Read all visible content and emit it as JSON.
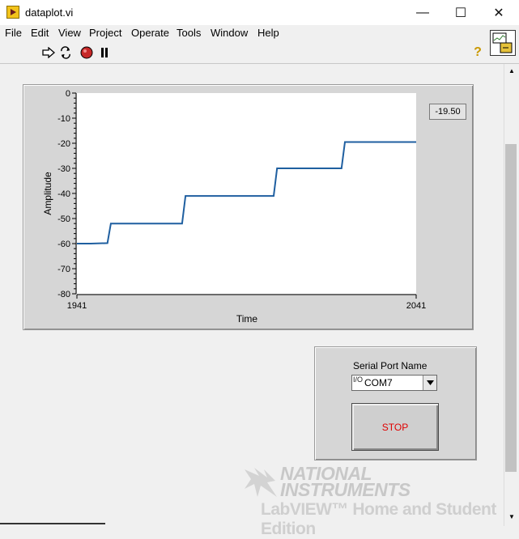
{
  "window": {
    "title": "dataplot.vi",
    "minimize": "—",
    "maximize": "☐",
    "close": "✕"
  },
  "menu": [
    "File",
    "Edit",
    "View",
    "Project",
    "Operate",
    "Tools",
    "Window",
    "Help"
  ],
  "toolbar": {
    "icons": [
      "run-arrow-icon",
      "run-continuously-icon",
      "abort-icon",
      "pause-icon",
      "help-icon"
    ],
    "help_glyph": "?"
  },
  "graph": {
    "readout": "-19.50"
  },
  "chart_data": {
    "type": "line",
    "xlabel": "Time",
    "ylabel": "Amplitude",
    "xlim": [
      1941,
      2041
    ],
    "ylim": [
      -80,
      0
    ],
    "x_ticks": [
      "1941",
      "2041"
    ],
    "y_ticks": [
      "0",
      "-10",
      "-20",
      "-30",
      "-40",
      "-50",
      "-60",
      "-70",
      "-80"
    ],
    "grid": false,
    "series_color": "#1f5fa0",
    "series": [
      {
        "x": [
          1941,
          1945,
          1950,
          1951,
          1952,
          1962,
          1972,
          1973,
          1974,
          1980,
          1990,
          1999,
          2000,
          2001,
          2010,
          2019,
          2020,
          2030,
          2041
        ],
        "values": [
          -60,
          -60,
          -59.8,
          -52,
          -52,
          -52,
          -52,
          -41,
          -41,
          -41,
          -41,
          -41,
          -30,
          -30,
          -30,
          -30,
          -19.5,
          -19.5,
          -19.5
        ]
      }
    ]
  },
  "serial": {
    "label": "Serial Port Name",
    "io_glyph": "I/O",
    "value": "COM7"
  },
  "stop": {
    "label": "STOP"
  },
  "watermark": {
    "line1": "NATIONAL",
    "line2": "INSTRUMENTS",
    "line3": "LabVIEW™ Home and Student Edition"
  }
}
